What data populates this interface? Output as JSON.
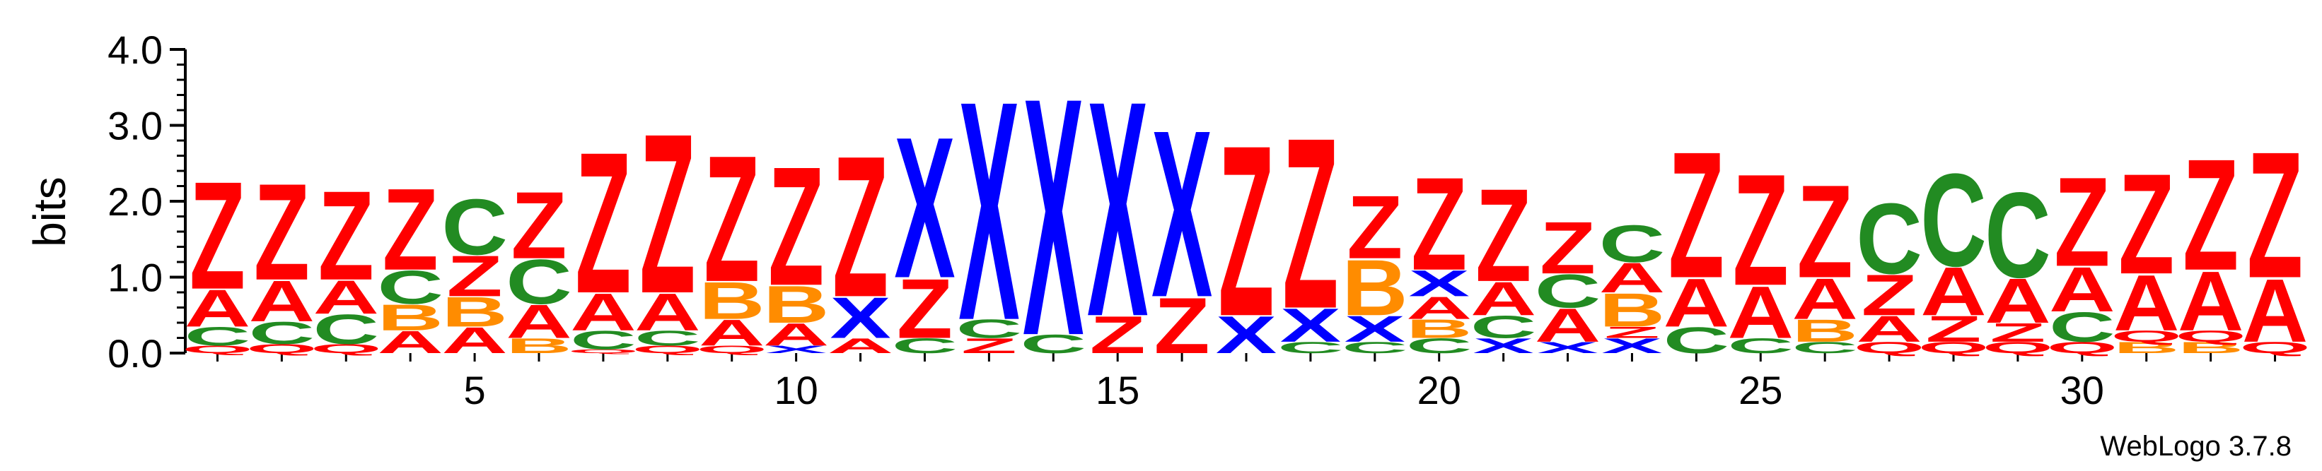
{
  "chart_data": {
    "type": "sequence-logo",
    "ylabel": "bits",
    "ylim": [
      0,
      4.0
    ],
    "y_ticks": [
      "0.0",
      "1.0",
      "2.0",
      "3.0",
      "4.0"
    ],
    "x_ticks": [
      "5",
      "10",
      "15",
      "20",
      "25",
      "30"
    ],
    "positions_count": 33,
    "colors": {
      "Z": "#ff0000",
      "A": "#ff0000",
      "Q": "#ff0000",
      "X": "#0000ff",
      "C": "#228b22",
      "B": "#ff8c00"
    },
    "columns": [
      {
        "position": 1,
        "stack": [
          [
            "Q",
            0.1
          ],
          [
            "C",
            0.25
          ],
          [
            "A",
            0.5
          ],
          [
            "Z",
            1.45
          ]
        ]
      },
      {
        "position": 2,
        "stack": [
          [
            "Q",
            0.12
          ],
          [
            "C",
            0.3
          ],
          [
            "A",
            0.55
          ],
          [
            "Z",
            1.3
          ]
        ]
      },
      {
        "position": 3,
        "stack": [
          [
            "Q",
            0.12
          ],
          [
            "C",
            0.4
          ],
          [
            "A",
            0.45
          ],
          [
            "Z",
            1.2
          ]
        ]
      },
      {
        "position": 4,
        "stack": [
          [
            "A",
            0.3
          ],
          [
            "B",
            0.35
          ],
          [
            "C",
            0.45
          ],
          [
            "Z",
            1.1
          ]
        ]
      },
      {
        "position": 5,
        "stack": [
          [
            "A",
            0.35
          ],
          [
            "B",
            0.4
          ],
          [
            "Z",
            0.55
          ],
          [
            "C",
            0.75
          ]
        ]
      },
      {
        "position": 6,
        "stack": [
          [
            "B",
            0.2
          ],
          [
            "A",
            0.45
          ],
          [
            "C",
            0.6
          ],
          [
            "Z",
            0.9
          ]
        ]
      },
      {
        "position": 7,
        "stack": [
          [
            "Q",
            0.05
          ],
          [
            "C",
            0.25
          ],
          [
            "A",
            0.5
          ],
          [
            "Z",
            1.9
          ]
        ]
      },
      {
        "position": 8,
        "stack": [
          [
            "Q",
            0.1
          ],
          [
            "C",
            0.2
          ],
          [
            "A",
            0.5
          ],
          [
            "Z",
            2.15
          ]
        ]
      },
      {
        "position": 9,
        "stack": [
          [
            "Q",
            0.1
          ],
          [
            "A",
            0.35
          ],
          [
            "B",
            0.5
          ],
          [
            "Z",
            1.7
          ]
        ]
      },
      {
        "position": 10,
        "stack": [
          [
            "X",
            0.1
          ],
          [
            "A",
            0.3
          ],
          [
            "B",
            0.5
          ],
          [
            "Z",
            1.6
          ]
        ]
      },
      {
        "position": 11,
        "stack": [
          [
            "A",
            0.2
          ],
          [
            "X",
            0.55
          ],
          [
            "Z",
            1.9
          ]
        ]
      },
      {
        "position": 12,
        "stack": [
          [
            "C",
            0.2
          ],
          [
            "Z",
            0.8
          ],
          [
            "X",
            1.9
          ]
        ]
      },
      {
        "position": 13,
        "stack": [
          [
            "Z",
            0.2
          ],
          [
            "C",
            0.25
          ],
          [
            "X",
            2.95
          ]
        ]
      },
      {
        "position": 14,
        "stack": [
          [
            "C",
            0.25
          ],
          [
            "X",
            3.2
          ]
        ]
      },
      {
        "position": 15,
        "stack": [
          [
            "Z",
            0.5
          ],
          [
            "X",
            2.9
          ]
        ]
      },
      {
        "position": 16,
        "stack": [
          [
            "Z",
            0.75
          ],
          [
            "X",
            2.25
          ]
        ]
      },
      {
        "position": 17,
        "stack": [
          [
            "X",
            0.5
          ],
          [
            "Z",
            2.3
          ]
        ]
      },
      {
        "position": 18,
        "stack": [
          [
            "C",
            0.15
          ],
          [
            "X",
            0.45
          ],
          [
            "Z",
            2.3
          ]
        ]
      },
      {
        "position": 19,
        "stack": [
          [
            "C",
            0.15
          ],
          [
            "X",
            0.35
          ],
          [
            "B",
            0.75
          ],
          [
            "Z",
            0.85
          ]
        ]
      },
      {
        "position": 20,
        "stack": [
          [
            "C",
            0.2
          ],
          [
            "B",
            0.25
          ],
          [
            "A",
            0.3
          ],
          [
            "X",
            0.35
          ],
          [
            "Z",
            1.25
          ]
        ]
      },
      {
        "position": 21,
        "stack": [
          [
            "X",
            0.2
          ],
          [
            "C",
            0.3
          ],
          [
            "A",
            0.45
          ],
          [
            "Z",
            1.25
          ]
        ]
      },
      {
        "position": 22,
        "stack": [
          [
            "X",
            0.15
          ],
          [
            "A",
            0.45
          ],
          [
            "C",
            0.45
          ],
          [
            "Z",
            0.7
          ]
        ]
      },
      {
        "position": 23,
        "stack": [
          [
            "X",
            0.2
          ],
          [
            "Z",
            0.15
          ],
          [
            "B",
            0.45
          ],
          [
            "A",
            0.4
          ],
          [
            "C",
            0.5
          ]
        ]
      },
      {
        "position": 24,
        "stack": [
          [
            "C",
            0.35
          ],
          [
            "A",
            0.65
          ],
          [
            "Z",
            1.7
          ]
        ]
      },
      {
        "position": 25,
        "stack": [
          [
            "C",
            0.2
          ],
          [
            "A",
            0.7
          ],
          [
            "Z",
            1.5
          ]
        ]
      },
      {
        "position": 26,
        "stack": [
          [
            "C",
            0.15
          ],
          [
            "B",
            0.3
          ],
          [
            "A",
            0.55
          ],
          [
            "Z",
            1.25
          ]
        ]
      },
      {
        "position": 27,
        "stack": [
          [
            "Q",
            0.15
          ],
          [
            "A",
            0.35
          ],
          [
            "Z",
            0.55
          ],
          [
            "C",
            0.95
          ]
        ]
      },
      {
        "position": 28,
        "stack": [
          [
            "Q",
            0.15
          ],
          [
            "Z",
            0.35
          ],
          [
            "A",
            0.65
          ],
          [
            "C",
            1.25
          ]
        ]
      },
      {
        "position": 29,
        "stack": [
          [
            "Q",
            0.15
          ],
          [
            "Z",
            0.25
          ],
          [
            "A",
            0.6
          ],
          [
            "C",
            1.15
          ]
        ]
      },
      {
        "position": 30,
        "stack": [
          [
            "Q",
            0.15
          ],
          [
            "C",
            0.4
          ],
          [
            "A",
            0.6
          ],
          [
            "Z",
            1.2
          ]
        ]
      },
      {
        "position": 31,
        "stack": [
          [
            "B",
            0.15
          ],
          [
            "Q",
            0.15
          ],
          [
            "A",
            0.75
          ],
          [
            "Z",
            1.35
          ]
        ]
      },
      {
        "position": 32,
        "stack": [
          [
            "B",
            0.15
          ],
          [
            "Q",
            0.15
          ],
          [
            "A",
            0.8
          ],
          [
            "Z",
            1.5
          ]
        ]
      },
      {
        "position": 33,
        "stack": [
          [
            "Q",
            0.15
          ],
          [
            "A",
            0.85
          ],
          [
            "Z",
            1.7
          ]
        ]
      }
    ]
  },
  "credit": "WebLogo 3.7.8"
}
